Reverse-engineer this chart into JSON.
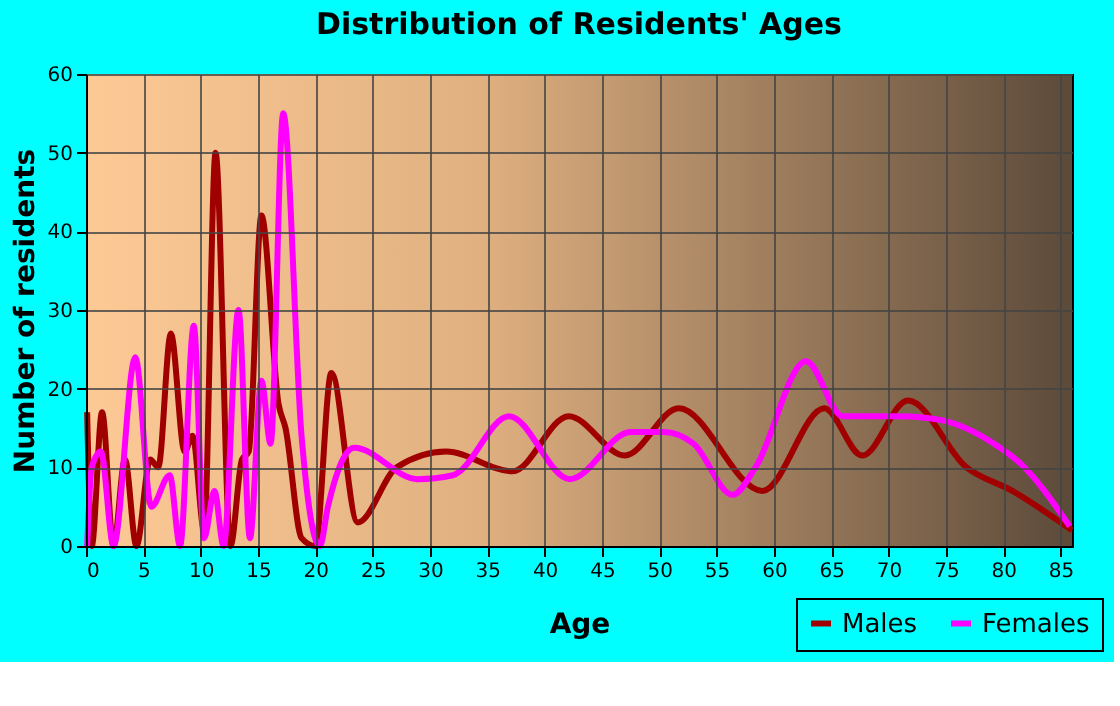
{
  "chart_data": {
    "type": "line",
    "title": "Distribution of Residents' Ages",
    "xlabel": "Age",
    "ylabel": "Number of residents",
    "xlim": [
      0,
      86
    ],
    "xticks": [
      0,
      5,
      10,
      15,
      20,
      25,
      30,
      35,
      40,
      45,
      50,
      55,
      60,
      65,
      70,
      75,
      80,
      85
    ],
    "ylim": [
      0,
      60
    ],
    "yticks": [
      0,
      10,
      20,
      30,
      40,
      50,
      60
    ],
    "grid": true,
    "legend": "bottom right",
    "line_style": "solid",
    "marker": "none",
    "series": [
      {
        "name": "Males",
        "color": "#a00000",
        "x": [
          0.1,
          0.5,
          1.4,
          2.4,
          3.4,
          4.4,
          5.6,
          6.3,
          7.4,
          8.6,
          9.3,
          10.3,
          11.3,
          12.6,
          13.6,
          14.2,
          15.3,
          16.8,
          17.4,
          18.8,
          20,
          21.4,
          23.7,
          27.1,
          31.4,
          37.2,
          42.1,
          47,
          51.7,
          59,
          64.4,
          67.7,
          71.7,
          76.8,
          80.8,
          86
        ],
        "values": [
          17,
          0,
          17,
          0,
          11,
          0,
          11,
          10,
          27,
          12,
          14,
          2,
          50,
          0,
          11,
          12,
          42,
          18,
          15,
          1,
          0,
          22,
          3,
          10,
          12,
          9.5,
          16.5,
          11.5,
          17.5,
          7,
          17.5,
          11.5,
          18.5,
          10,
          7,
          2
        ]
      },
      {
        "name": "Females",
        "color": "#ff00ff",
        "x": [
          0.1,
          0.5,
          1.3,
          2.4,
          4.3,
          5.7,
          7.3,
          8.2,
          9.4,
          10.3,
          11.2,
          12,
          13.3,
          14.3,
          15.3,
          16.1,
          17.2,
          18.8,
          20.4,
          21.1,
          23.4,
          28.9,
          32,
          36.9,
          42.2,
          47.5,
          50.4,
          53,
          56.4,
          58.4,
          62.8,
          66,
          71,
          74.6,
          79.2,
          81.5,
          85.8
        ],
        "values": [
          0,
          10,
          12,
          0,
          24,
          5,
          9,
          0,
          28,
          1,
          7,
          0,
          30,
          1,
          21,
          13,
          55,
          14,
          0,
          5,
          12.5,
          8.5,
          9,
          16.5,
          8.5,
          14.5,
          14.5,
          13,
          6.5,
          10,
          23.5,
          16.5,
          16.5,
          16,
          13,
          10.5,
          2.5
        ]
      }
    ]
  }
}
